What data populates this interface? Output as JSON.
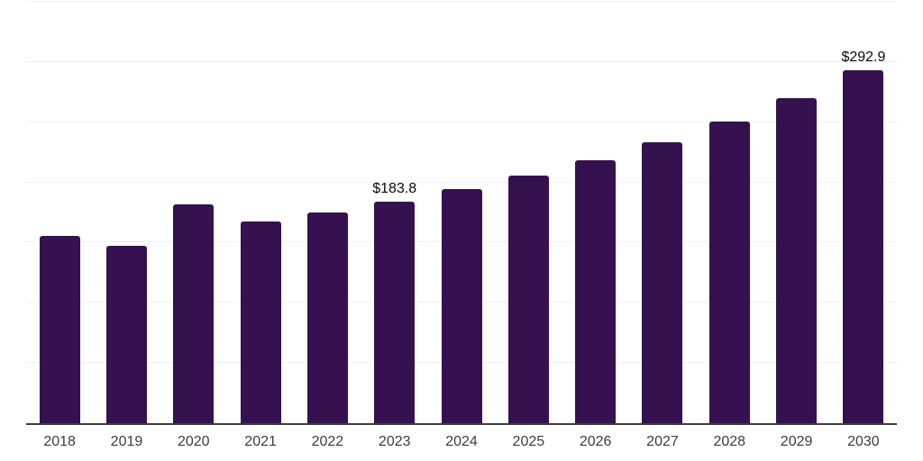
{
  "colors": {
    "bar": "#36114F",
    "axis_line": "#3C3C3C",
    "gridline": "#F1F1F1",
    "tick_label": "#3D3D3D",
    "data_label": "#0A0A0A",
    "background": "#FFFFFF"
  },
  "chart_data": {
    "type": "bar",
    "title": "",
    "xlabel": "",
    "ylabel": "",
    "categories": [
      "2018",
      "2019",
      "2020",
      "2021",
      "2022",
      "2023",
      "2024",
      "2025",
      "2026",
      "2027",
      "2028",
      "2029",
      "2030"
    ],
    "values": [
      155.7,
      147.0,
      181.5,
      167.7,
      175.0,
      183.8,
      194.4,
      205.6,
      218.1,
      233.0,
      250.5,
      270.3,
      292.9
    ],
    "data_labels": {
      "2023": "$183.8",
      "2030": "$292.9"
    },
    "ylim": [
      0,
      350
    ],
    "grid_step": 50,
    "grid": "horizontal",
    "legend": "none",
    "y_axis_labels_visible": false
  }
}
